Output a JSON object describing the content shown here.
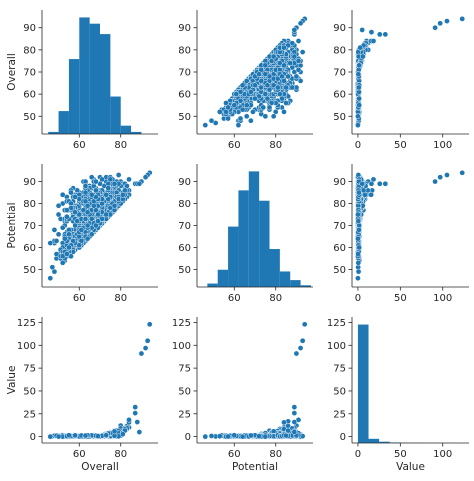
{
  "chart_data": {
    "type": "scatter",
    "variables": [
      "Overall",
      "Potential",
      "Value"
    ],
    "axis_labels": {
      "rows": [
        "Overall",
        "Potential",
        "Value"
      ],
      "cols": [
        "Overall",
        "Potential",
        "Value"
      ]
    },
    "ticks": {
      "Overall": {
        "as_y": [
          50,
          60,
          70,
          80,
          90
        ],
        "as_x": [
          60,
          80
        ]
      },
      "Potential": {
        "as_y": [
          50,
          60,
          70,
          80,
          90
        ],
        "as_x": [
          60,
          80
        ]
      },
      "Value": {
        "as_y": [
          0,
          25,
          50,
          75,
          100,
          125
        ],
        "as_x": [
          0,
          50,
          100
        ]
      }
    },
    "ranges": {
      "Overall": [
        42,
        98
      ],
      "Potential": [
        42,
        98
      ],
      "Value": [
        -7,
        131
      ]
    },
    "diagonal": "histogram",
    "offdiagonal": "scatter",
    "color": "#1f77b4",
    "histograms": {
      "Overall": {
        "edges": [
          45,
          50,
          55,
          60,
          65,
          70,
          75,
          80,
          85,
          90,
          95
        ],
        "counts": [
          1,
          11,
          36,
          56,
          53,
          48,
          18,
          4,
          1,
          0
        ]
      },
      "Potential": {
        "edges": [
          47,
          52,
          57,
          62,
          67,
          72,
          77,
          82,
          87,
          92,
          97
        ],
        "counts": [
          2,
          10,
          35,
          56,
          67,
          50,
          22,
          9,
          4,
          1
        ]
      },
      "Value": {
        "edges": [
          0,
          12.5,
          25,
          37.5,
          50,
          62.5,
          75,
          87.5,
          100,
          112.5,
          125
        ],
        "counts": [
          17500,
          620,
          190,
          80,
          40,
          22,
          12,
          6,
          3,
          1
        ]
      }
    },
    "grid": false,
    "legend": "none"
  }
}
